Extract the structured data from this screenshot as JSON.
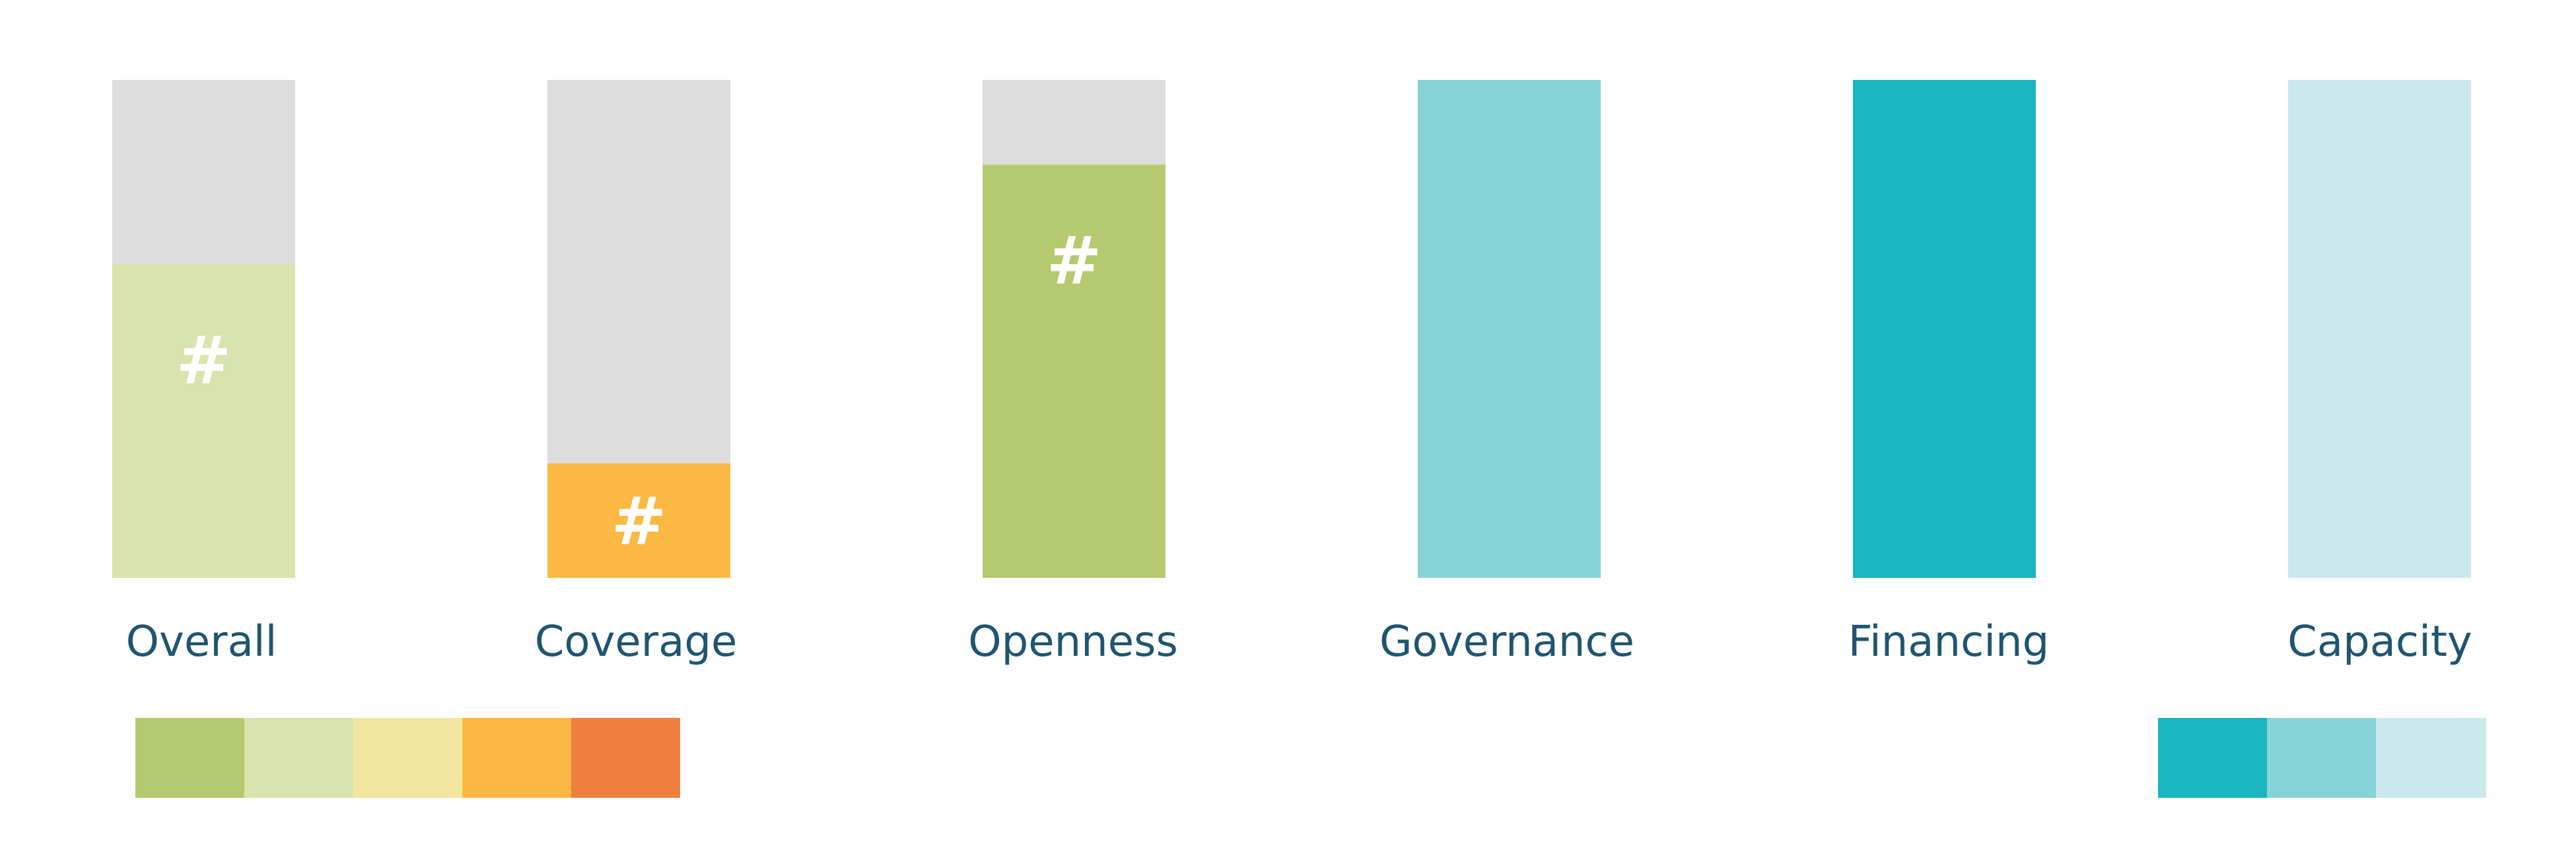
{
  "chart_data": {
    "type": "bar",
    "stacked": true,
    "title": "",
    "xlabel": "",
    "ylabel": "",
    "ylim": [
      0,
      100
    ],
    "grid": false,
    "categories": [
      "Overall",
      "Coverage",
      "Openness",
      "Governance",
      "Financing",
      "Capacity"
    ],
    "values": [
      63,
      23,
      83,
      100,
      100,
      100
    ],
    "bar_colors": [
      "#d9e3ad",
      "#fbb843",
      "#b5ca6f",
      "#86d3d8",
      "#19b5c0",
      "#cbe8ec"
    ],
    "remainder_color": "#dddddd",
    "bar_markers": [
      "#",
      "#",
      "#",
      "",
      "",
      ""
    ],
    "marker_color": "#ffffff",
    "label_color": "#1f5570",
    "legend_left": {
      "placement": "bottom-left",
      "colors": [
        "#b5ca6f",
        "#d9e3ad",
        "#f2e6a0",
        "#fbb843",
        "#ef7f3f"
      ]
    },
    "legend_right": {
      "placement": "bottom-right",
      "colors": [
        "#19b5c0",
        "#86d3d8",
        "#cbe8ec"
      ]
    }
  }
}
